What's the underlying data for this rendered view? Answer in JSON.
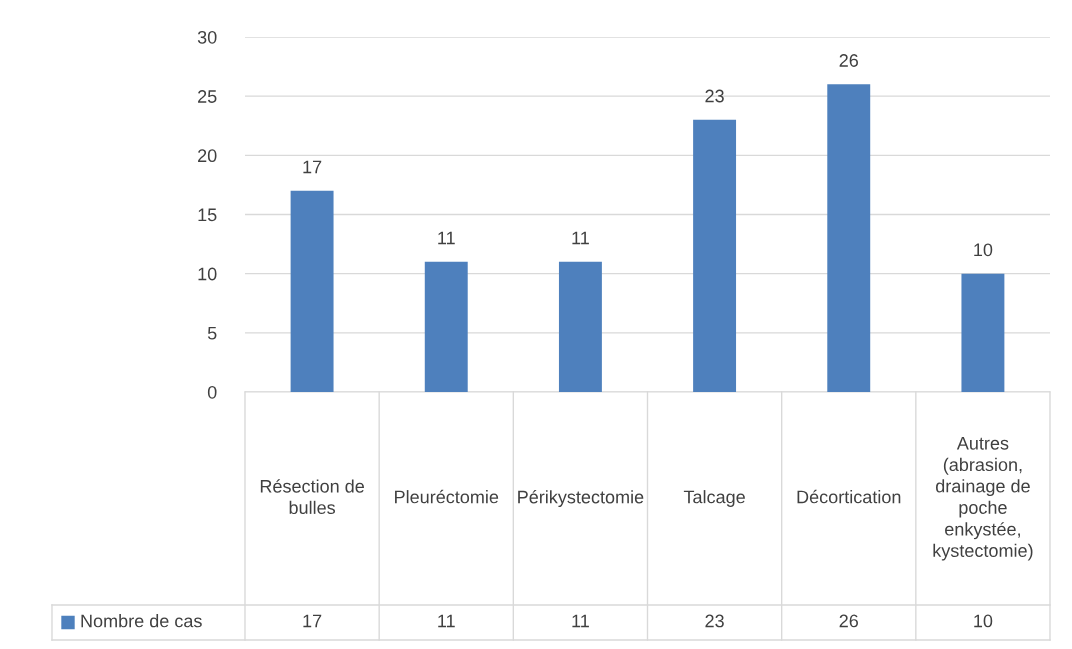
{
  "chart_data": {
    "type": "bar",
    "categories": [
      "Résection de bulles",
      "Pleuréctomie",
      "Périkystectomie",
      "Talcage",
      "Décortication",
      "Autres (abrasion, drainage de poche enkystée, kystectomie)"
    ],
    "series": [
      {
        "name": "Nombre de cas",
        "color": "#4e80bd",
        "values": [
          17,
          11,
          11,
          23,
          26,
          10
        ],
        "value_labels": [
          "17",
          "11",
          "11",
          "23",
          "26",
          "10"
        ]
      }
    ],
    "ylim": [
      0,
      30
    ],
    "yticks": [
      0,
      5,
      10,
      15,
      20,
      25,
      30
    ],
    "grid": "y",
    "data_labels": true,
    "annotations": [
      "17",
      "11",
      "11",
      "23",
      "26",
      "10"
    ],
    "legend": "bottom"
  }
}
